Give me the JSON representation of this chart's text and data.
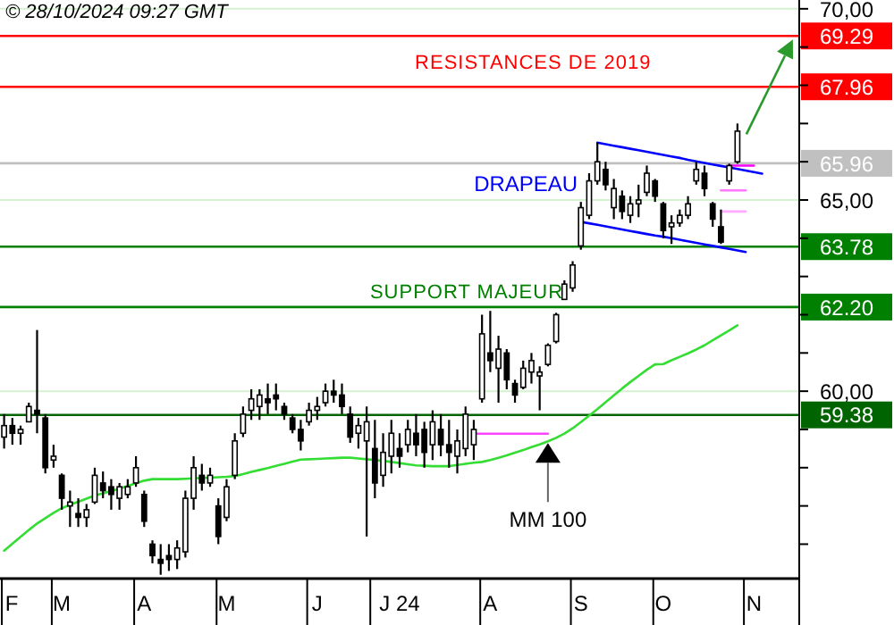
{
  "chart_data": {
    "type": "candlestick",
    "categories": [
      "F",
      null,
      null,
      null,
      null,
      null,
      null,
      "M",
      null,
      null,
      null,
      null,
      null,
      null,
      null,
      null,
      null,
      "A",
      null,
      null,
      null,
      null,
      null,
      null,
      null,
      null,
      null,
      "M",
      null,
      null,
      null,
      null,
      null,
      null,
      null,
      null,
      null,
      null,
      "J",
      null,
      null,
      null,
      null,
      null,
      null,
      null,
      null,
      null,
      "J 24",
      null,
      null,
      null,
      null,
      null,
      null,
      null,
      null,
      null,
      null,
      "A",
      null,
      null,
      null,
      null,
      null,
      null,
      null,
      null,
      null,
      null,
      "S",
      null,
      null,
      null,
      null,
      null,
      null,
      null,
      null,
      null,
      "O",
      null,
      null,
      null,
      null,
      null,
      null,
      null,
      null,
      null,
      null,
      "N",
      null,
      null,
      null,
      null,
      null
    ],
    "ohlc": [
      [
        58.8,
        59.4,
        58.5,
        59.1
      ],
      [
        59.1,
        59.3,
        58.6,
        58.9
      ],
      [
        58.9,
        59.1,
        58.6,
        59.0
      ],
      [
        59.2,
        59.7,
        59.2,
        59.6
      ],
      [
        59.5,
        61.6,
        58.9,
        59.4
      ],
      [
        59.3,
        59.4,
        57.85,
        58.0
      ],
      [
        58.2,
        58.6,
        58.0,
        58.3
      ],
      [
        57.8,
        57.85,
        56.9,
        57.2
      ],
      [
        57.0,
        57.4,
        56.45,
        57.1
      ],
      [
        56.8,
        57.2,
        56.45,
        56.7
      ],
      [
        56.7,
        57.05,
        56.45,
        56.9
      ],
      [
        57.1,
        58.0,
        57.05,
        57.8
      ],
      [
        57.6,
        57.9,
        57.2,
        57.4
      ],
      [
        57.5,
        57.7,
        56.9,
        57.3
      ],
      [
        57.2,
        57.6,
        56.9,
        57.5
      ],
      [
        57.3,
        57.7,
        57.2,
        57.5
      ],
      [
        57.6,
        58.3,
        57.5,
        58.0
      ],
      [
        57.3,
        57.4,
        56.45,
        56.6
      ],
      [
        56.0,
        56.1,
        55.5,
        55.7
      ],
      [
        55.6,
        56.0,
        55.2,
        55.5
      ],
      [
        55.7,
        56.0,
        55.3,
        55.6
      ],
      [
        55.6,
        56.1,
        55.35,
        55.9
      ],
      [
        55.8,
        57.4,
        55.65,
        57.2
      ],
      [
        57.2,
        58.3,
        56.9,
        58.0
      ],
      [
        57.8,
        58.1,
        57.4,
        57.6
      ],
      [
        57.6,
        58.0,
        57.5,
        57.8
      ],
      [
        57.0,
        57.2,
        56.0,
        56.2
      ],
      [
        56.7,
        57.7,
        56.6,
        57.5
      ],
      [
        57.8,
        58.9,
        57.7,
        58.7
      ],
      [
        58.9,
        59.6,
        58.8,
        59.4
      ],
      [
        59.5,
        60.05,
        59.25,
        59.8
      ],
      [
        59.6,
        60.05,
        59.25,
        59.9
      ],
      [
        59.8,
        60.2,
        59.4,
        59.7
      ],
      [
        59.9,
        60.2,
        59.5,
        59.8
      ],
      [
        59.6,
        59.7,
        59.25,
        59.4
      ],
      [
        59.3,
        59.4,
        58.9,
        59.0
      ],
      [
        59.0,
        59.25,
        58.45,
        58.7
      ],
      [
        59.2,
        59.7,
        59.1,
        59.5
      ],
      [
        59.5,
        59.85,
        59.25,
        59.6
      ],
      [
        59.7,
        60.2,
        59.6,
        60.0
      ],
      [
        60.0,
        60.3,
        59.7,
        59.9
      ],
      [
        59.9,
        60.2,
        59.4,
        59.6
      ],
      [
        59.4,
        59.6,
        58.65,
        58.8
      ],
      [
        58.9,
        59.3,
        58.5,
        59.1
      ],
      [
        58.7,
        59.6,
        56.2,
        59.2
      ],
      [
        58.5,
        59.25,
        57.2,
        57.6
      ],
      [
        57.8,
        58.9,
        57.5,
        58.4
      ],
      [
        58.3,
        59.25,
        57.85,
        58.9
      ],
      [
        58.5,
        58.9,
        58.0,
        58.3
      ],
      [
        58.6,
        59.25,
        58.4,
        59.0
      ],
      [
        58.9,
        59.4,
        58.3,
        58.6
      ],
      [
        59.0,
        59.2,
        58.0,
        58.4
      ],
      [
        58.6,
        59.5,
        58.2,
        59.2
      ],
      [
        59.0,
        59.4,
        58.3,
        58.6
      ],
      [
        58.6,
        59.25,
        58.0,
        58.4
      ],
      [
        58.3,
        59.0,
        57.85,
        58.7
      ],
      [
        58.5,
        59.6,
        58.3,
        59.4
      ],
      [
        58.6,
        59.25,
        58.2,
        59.0
      ],
      [
        59.8,
        62.0,
        59.7,
        61.5
      ],
      [
        61.0,
        62.1,
        60.5,
        60.8
      ],
      [
        60.6,
        61.45,
        59.7,
        61.1
      ],
      [
        61.0,
        61.1,
        60.05,
        60.3
      ],
      [
        60.2,
        60.3,
        59.7,
        59.9
      ],
      [
        60.1,
        60.8,
        60.05,
        60.6
      ],
      [
        60.5,
        61.0,
        60.2,
        60.8
      ],
      [
        60.4,
        60.65,
        59.5,
        60.5
      ],
      [
        60.7,
        61.25,
        60.65,
        61.2
      ],
      [
        61.3,
        62.05,
        61.25,
        62.0
      ],
      [
        62.4,
        62.9,
        62.4,
        62.8
      ],
      [
        62.7,
        63.4,
        62.6,
        63.3
      ],
      [
        63.8,
        64.95,
        63.7,
        64.8
      ],
      [
        64.6,
        65.7,
        64.5,
        65.5
      ],
      [
        65.5,
        66.5,
        65.4,
        66.0
      ],
      [
        65.8,
        66.0,
        65.25,
        65.4
      ],
      [
        64.8,
        65.55,
        64.5,
        65.3
      ],
      [
        65.1,
        65.25,
        64.5,
        64.7
      ],
      [
        64.6,
        65.1,
        64.4,
        64.9
      ],
      [
        64.9,
        65.4,
        64.55,
        65.0
      ],
      [
        65.2,
        65.9,
        65.1,
        65.7
      ],
      [
        65.5,
        65.55,
        64.95,
        65.1
      ],
      [
        64.9,
        64.95,
        64.0,
        64.2
      ],
      [
        64.3,
        64.6,
        63.85,
        64.4
      ],
      [
        64.4,
        64.75,
        64.3,
        64.6
      ],
      [
        64.6,
        65.1,
        64.5,
        64.9
      ],
      [
        65.5,
        66.0,
        65.4,
        65.8
      ],
      [
        65.7,
        65.9,
        65.1,
        65.3
      ],
      [
        64.9,
        64.95,
        64.3,
        64.5
      ],
      [
        64.3,
        64.75,
        63.85,
        63.9
      ],
      [
        65.5,
        65.95,
        65.4,
        65.9
      ],
      [
        66.0,
        67.0,
        65.95,
        66.8
      ],
      null,
      null,
      null,
      null,
      null,
      null,
      null
    ],
    "series": [
      {
        "type": "line",
        "name": "MM 100",
        "color": "#33dd33",
        "values": [
          55.83,
          56.01,
          56.19,
          56.37,
          56.54,
          56.68,
          56.82,
          56.94,
          57.03,
          57.11,
          57.19,
          57.27,
          57.33,
          57.39,
          57.45,
          57.52,
          57.59,
          57.66,
          57.7,
          57.7,
          57.7,
          57.7,
          57.71,
          57.72,
          57.73,
          57.74,
          57.75,
          57.76,
          57.78,
          57.83,
          57.89,
          57.94,
          57.99,
          58.05,
          58.1,
          58.16,
          58.21,
          58.22,
          58.23,
          58.24,
          58.25,
          58.26,
          58.26,
          58.24,
          58.22,
          58.2,
          58.18,
          58.15,
          58.12,
          58.09,
          58.06,
          58.05,
          58.04,
          58.04,
          58.04,
          58.07,
          58.1,
          58.13,
          58.15,
          58.2,
          58.26,
          58.32,
          58.39,
          58.46,
          58.54,
          58.61,
          58.69,
          58.78,
          58.89,
          59.03,
          59.19,
          59.36,
          59.53,
          59.71,
          59.89,
          60.07,
          60.24,
          60.4,
          60.56,
          60.7,
          60.71,
          60.81,
          60.9,
          60.99,
          61.09,
          61.2,
          61.33,
          61.46,
          61.59,
          61.72,
          null,
          null,
          null,
          null,
          null,
          null,
          null
        ]
      },
      {
        "type": "line",
        "name": "DRAPEAU",
        "color": "#0000ff",
        "values": [
          null,
          null,
          null,
          null,
          null,
          null,
          null,
          null,
          null,
          null,
          null,
          null,
          null,
          null,
          null,
          null,
          null,
          null,
          null,
          null,
          null,
          null,
          null,
          null,
          null,
          null,
          null,
          null,
          null,
          null,
          null,
          null,
          null,
          null,
          null,
          null,
          null,
          null,
          null,
          null,
          null,
          null,
          null,
          null,
          null,
          null,
          null,
          null,
          null,
          null,
          null,
          null,
          null,
          null,
          null,
          null,
          null,
          null,
          null,
          null,
          null,
          null,
          null,
          null,
          null,
          null,
          null,
          null,
          null,
          null,
          null,
          null,
          66.5,
          66.46,
          66.42,
          66.38,
          66.34,
          66.3,
          66.26,
          66.22,
          66.18,
          66.14,
          66.1,
          66.05,
          66.01,
          65.97,
          65.93,
          65.89,
          65.85,
          65.81,
          65.77,
          65.73,
          65.69,
          null,
          null,
          null,
          null
        ]
      },
      {
        "type": "line",
        "color": "#0000ff",
        "values": [
          null,
          null,
          null,
          null,
          null,
          null,
          null,
          null,
          null,
          null,
          null,
          null,
          null,
          null,
          null,
          null,
          null,
          null,
          null,
          null,
          null,
          null,
          null,
          null,
          null,
          null,
          null,
          null,
          null,
          null,
          null,
          null,
          null,
          null,
          null,
          null,
          null,
          null,
          null,
          null,
          null,
          null,
          null,
          null,
          null,
          null,
          null,
          null,
          null,
          null,
          null,
          null,
          null,
          null,
          null,
          null,
          null,
          null,
          null,
          null,
          null,
          null,
          null,
          null,
          null,
          null,
          null,
          null,
          null,
          null,
          64.43,
          64.39,
          64.35,
          64.31,
          64.27,
          64.23,
          64.19,
          64.15,
          64.11,
          64.07,
          64.04,
          64.0,
          63.96,
          63.92,
          63.88,
          63.84,
          63.8,
          63.76,
          63.72,
          63.68,
          63.64,
          null,
          null,
          null,
          null,
          null,
          null
        ]
      },
      {
        "type": "line",
        "color": "#ff44ff",
        "values": [
          null,
          null,
          null,
          null,
          null,
          null,
          null,
          null,
          null,
          null,
          null,
          null,
          null,
          null,
          null,
          null,
          null,
          null,
          null,
          null,
          null,
          null,
          null,
          null,
          null,
          null,
          null,
          null,
          null,
          null,
          null,
          null,
          null,
          null,
          null,
          null,
          null,
          null,
          null,
          null,
          null,
          null,
          null,
          null,
          null,
          null,
          null,
          null,
          null,
          null,
          null,
          null,
          null,
          null,
          null,
          null,
          null,
          58.89,
          58.89,
          58.89,
          58.89,
          58.89,
          58.89,
          58.89,
          58.89,
          58.89,
          58.89,
          null,
          null,
          null,
          null,
          null,
          null,
          null,
          null,
          null,
          null,
          null,
          null,
          null,
          null,
          null,
          null,
          null,
          null,
          null,
          null,
          null,
          null,
          null,
          null,
          null,
          null,
          null,
          null,
          null,
          null
        ]
      },
      {
        "type": "line",
        "color": "#ff00ff",
        "values": [
          null,
          null,
          null,
          null,
          null,
          null,
          null,
          null,
          null,
          null,
          null,
          null,
          null,
          null,
          null,
          null,
          null,
          null,
          null,
          null,
          null,
          null,
          null,
          null,
          null,
          null,
          null,
          null,
          null,
          null,
          null,
          null,
          null,
          null,
          null,
          null,
          null,
          null,
          null,
          null,
          null,
          null,
          null,
          null,
          null,
          null,
          null,
          null,
          null,
          null,
          null,
          null,
          null,
          null,
          null,
          null,
          null,
          null,
          null,
          null,
          null,
          null,
          null,
          null,
          null,
          null,
          null,
          null,
          null,
          null,
          null,
          null,
          null,
          null,
          null,
          null,
          null,
          null,
          null,
          null,
          null,
          null,
          null,
          null,
          null,
          null,
          null,
          null,
          65.9,
          65.9,
          65.9,
          65.9,
          null,
          null,
          null,
          null,
          null
        ]
      },
      {
        "type": "line",
        "color": "#ff77ff",
        "values": [
          null,
          null,
          null,
          null,
          null,
          null,
          null,
          null,
          null,
          null,
          null,
          null,
          null,
          null,
          null,
          null,
          null,
          null,
          null,
          null,
          null,
          null,
          null,
          null,
          null,
          null,
          null,
          null,
          null,
          null,
          null,
          null,
          null,
          null,
          null,
          null,
          null,
          null,
          null,
          null,
          null,
          null,
          null,
          null,
          null,
          null,
          null,
          null,
          null,
          null,
          null,
          null,
          null,
          null,
          null,
          null,
          null,
          null,
          null,
          null,
          null,
          null,
          null,
          null,
          null,
          null,
          null,
          null,
          null,
          null,
          null,
          null,
          null,
          null,
          null,
          null,
          null,
          null,
          null,
          null,
          null,
          null,
          null,
          null,
          null,
          null,
          null,
          65.25,
          65.25,
          65.25,
          65.25,
          null,
          null,
          null,
          null,
          null,
          null
        ]
      },
      {
        "type": "line",
        "color": "#ffaaff",
        "values": [
          null,
          null,
          null,
          null,
          null,
          null,
          null,
          null,
          null,
          null,
          null,
          null,
          null,
          null,
          null,
          null,
          null,
          null,
          null,
          null,
          null,
          null,
          null,
          null,
          null,
          null,
          null,
          null,
          null,
          null,
          null,
          null,
          null,
          null,
          null,
          null,
          null,
          null,
          null,
          null,
          null,
          null,
          null,
          null,
          null,
          null,
          null,
          null,
          null,
          null,
          null,
          null,
          null,
          null,
          null,
          null,
          null,
          null,
          null,
          null,
          null,
          null,
          null,
          null,
          null,
          null,
          null,
          null,
          null,
          null,
          null,
          null,
          null,
          null,
          null,
          null,
          null,
          null,
          null,
          null,
          null,
          null,
          null,
          null,
          null,
          null,
          null,
          64.7,
          64.7,
          64.7,
          64.7,
          null,
          null,
          null,
          null,
          null,
          null
        ]
      }
    ],
    "ylim": [
      55.1,
      70.23
    ],
    "yticks": [
      {
        "value": 56,
        "label": null
      },
      {
        "value": 57,
        "label": null
      },
      {
        "value": 58,
        "label": null
      },
      {
        "value": 59,
        "label": null
      },
      {
        "value": 60,
        "label": "60,00"
      },
      {
        "value": 61,
        "label": null
      },
      {
        "value": 62,
        "label": null
      },
      {
        "value": 63,
        "label": null
      },
      {
        "value": 64,
        "label": null
      },
      {
        "value": 65,
        "label": "65,00"
      },
      {
        "value": 66,
        "label": null
      },
      {
        "value": 67,
        "label": null
      },
      {
        "value": 68,
        "label": null
      },
      {
        "value": 69,
        "label": null
      },
      {
        "value": 70,
        "label": "70,00"
      }
    ],
    "grid": "y",
    "ref_lines": [
      {
        "axis": "y",
        "value": 69.29,
        "label": "69.29",
        "color": "#ff0000"
      },
      {
        "axis": "y",
        "value": 67.96,
        "label": "67.96",
        "color": "#ff0000"
      },
      {
        "axis": "y",
        "value": 65.96,
        "label": "65.96",
        "color": "#c0c0c0"
      },
      {
        "axis": "y",
        "value": 63.78,
        "label": "63.78",
        "color": "#008000"
      },
      {
        "axis": "y",
        "value": 62.2,
        "label": "62.20",
        "color": "#008000"
      },
      {
        "axis": "y",
        "value": 59.38,
        "label": "59.38",
        "color": "#006400"
      }
    ],
    "annotations": [
      "© 28/10/2024 09:27 GMT",
      "RESISTANCES DE 2019",
      "SUPPORT MAJEUR"
    ]
  }
}
